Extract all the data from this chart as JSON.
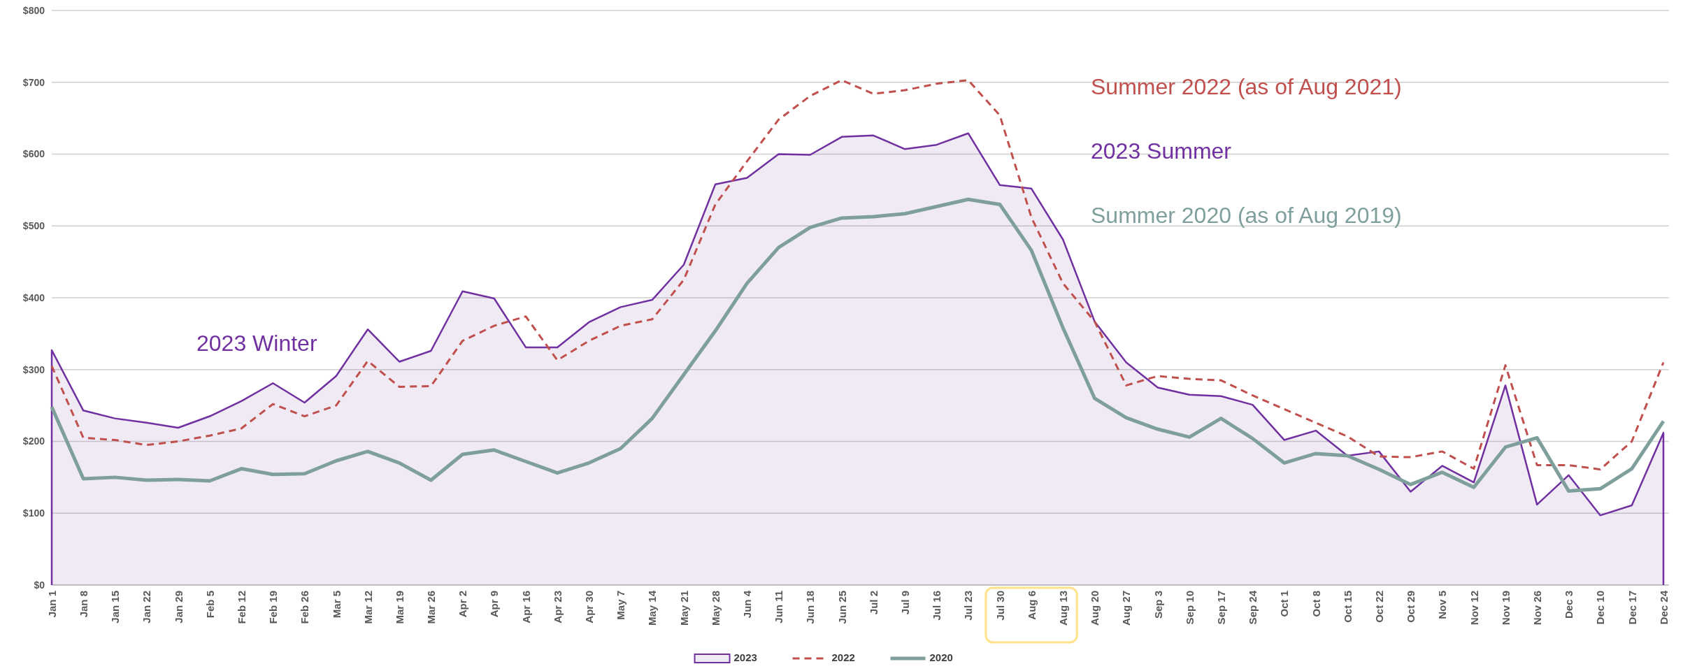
{
  "chart_data": {
    "type": "line",
    "categories": [
      "Jan 1",
      "Jan 8",
      "Jan 15",
      "Jan 22",
      "Jan 29",
      "Feb 5",
      "Feb 12",
      "Feb 19",
      "Feb 26",
      "Mar 5",
      "Mar 12",
      "Mar 19",
      "Mar 26",
      "Apr 2",
      "Apr 9",
      "Apr 16",
      "Apr 23",
      "Apr 30",
      "May 7",
      "May 14",
      "May 21",
      "May 28",
      "Jun 4",
      "Jun 11",
      "Jun 18",
      "Jun 25",
      "Jul 2",
      "Jul 9",
      "Jul 16",
      "Jul 23",
      "Jul 30",
      "Aug 6",
      "Aug 13",
      "Aug 20",
      "Aug 27",
      "Sep 3",
      "Sep 10",
      "Sep 17",
      "Sep 24",
      "Oct 1",
      "Oct 8",
      "Oct 15",
      "Oct 22",
      "Oct 29",
      "Nov 5",
      "Nov 12",
      "Nov 19",
      "Nov 26",
      "Dec 3",
      "Dec 10",
      "Dec 17",
      "Dec 24"
    ],
    "series": [
      {
        "name": "2023",
        "type": "area",
        "color": "#7030a0",
        "line_style": "solid",
        "values": [
          327,
          243,
          232,
          226,
          219,
          235,
          256,
          281,
          254,
          291,
          356,
          311,
          326,
          409,
          399,
          331,
          331,
          366,
          387,
          397,
          446,
          558,
          567,
          600,
          599,
          624,
          626,
          607,
          613,
          629,
          557,
          552,
          481,
          367,
          310,
          275,
          265,
          263,
          251,
          202,
          215,
          180,
          186,
          130,
          166,
          143,
          278,
          112,
          153,
          97,
          111,
          212
        ]
      },
      {
        "name": "2022",
        "color": "#c0504d",
        "line_style": "dashed",
        "values": [
          305,
          205,
          202,
          195,
          200,
          208,
          218,
          252,
          235,
          250,
          312,
          276,
          277,
          340,
          361,
          374,
          313,
          340,
          361,
          370,
          425,
          530,
          590,
          648,
          681,
          703,
          684,
          689,
          698,
          703,
          654,
          512,
          420,
          367,
          278,
          291,
          287,
          285,
          264,
          245,
          226,
          207,
          179,
          178,
          186,
          162,
          306,
          167,
          167,
          161,
          200,
          310
        ]
      },
      {
        "name": "2020",
        "color": "#7f9f9c",
        "line_style": "solid",
        "values": [
          248,
          148,
          150,
          146,
          147,
          145,
          162,
          154,
          155,
          173,
          186,
          170,
          146,
          182,
          188,
          172,
          156,
          170,
          190,
          232,
          293,
          354,
          420,
          470,
          498,
          511,
          513,
          517,
          527,
          537,
          530,
          466,
          358,
          260,
          233,
          217,
          206,
          232,
          204,
          170,
          183,
          180,
          161,
          140,
          157,
          136,
          192,
          205,
          131,
          134,
          162,
          228
        ]
      }
    ],
    "ylim": [
      0,
      800
    ],
    "yticks": [
      {
        "value": 0,
        "label": "$0"
      },
      {
        "value": 100,
        "label": "$100"
      },
      {
        "value": 200,
        "label": "$200"
      },
      {
        "value": 300,
        "label": "$300"
      },
      {
        "value": 400,
        "label": "$400"
      },
      {
        "value": 500,
        "label": "$500"
      },
      {
        "value": 600,
        "label": "$600"
      },
      {
        "value": 700,
        "label": "$700"
      },
      {
        "value": 800,
        "label": "$800"
      }
    ],
    "grid": "y",
    "legend": "bottom",
    "marker": "none",
    "annotations": [
      "2023 Winter",
      "2023 Summer",
      "Summer 2022 (as of Aug 2021)",
      "Summer 2020 (as of Aug 2019)"
    ]
  }
}
